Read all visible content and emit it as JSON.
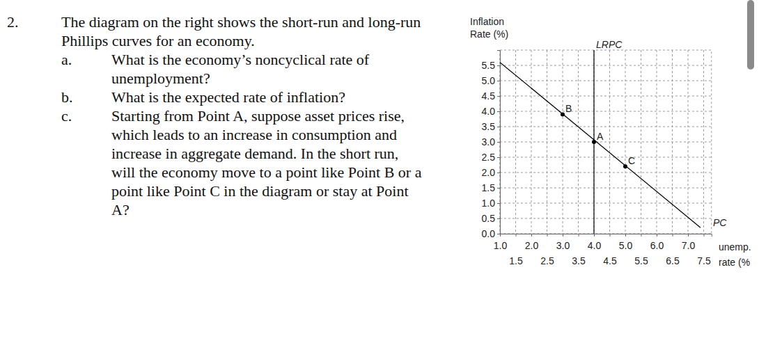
{
  "question": {
    "number": "2.",
    "intro": [
      "The diagram on the right shows the short-run and long-run",
      "Phillips curves for an economy."
    ],
    "parts": [
      {
        "label": "a.",
        "lines": [
          "What is the economy’s noncyclical rate of",
          "unemployment?"
        ]
      },
      {
        "label": "b.",
        "lines": [
          "What is the expected rate of inflation?"
        ]
      },
      {
        "label": "c.",
        "lines": [
          "Starting from Point A, suppose asset prices rise,",
          "which leads to an increase in consumption and",
          "increase in aggregate demand.  In the short run,",
          "will the economy move to a point like Point B or a",
          "point like Point C in the diagram or stay at Point",
          "A?"
        ]
      }
    ]
  },
  "chart_data": {
    "type": "line",
    "y_label": [
      "Inflation",
      "Rate (%)"
    ],
    "x_label": [
      "unemp.",
      "rate (%"
    ],
    "xlim": [
      1.0,
      7.75
    ],
    "ylim": [
      0,
      6.0
    ],
    "xticks": [
      {
        "value": 1.0,
        "label": "1.0"
      },
      {
        "value": 1.5,
        "label": "1.5"
      },
      {
        "value": 2.0,
        "label": "2.0"
      },
      {
        "value": 2.5,
        "label": "2.5"
      },
      {
        "value": 3.0,
        "label": "3.0"
      },
      {
        "value": 3.5,
        "label": "3.5"
      },
      {
        "value": 4.0,
        "label": "4.0"
      },
      {
        "value": 4.5,
        "label": "4.5"
      },
      {
        "value": 5.0,
        "label": "5.0"
      },
      {
        "value": 5.5,
        "label": "5.5"
      },
      {
        "value": 6.0,
        "label": "6.0"
      },
      {
        "value": 6.5,
        "label": "6.5"
      },
      {
        "value": 7.0,
        "label": "7.0"
      },
      {
        "value": 7.5,
        "label": "7.5"
      }
    ],
    "yticks": [
      {
        "value": 0,
        "label": "0.0"
      },
      {
        "value": 0.5,
        "label": "0.5"
      },
      {
        "value": 1.0,
        "label": "1.0"
      },
      {
        "value": 1.5,
        "label": "1.5"
      },
      {
        "value": 2.0,
        "label": "2.0"
      },
      {
        "value": 2.5,
        "label": "2.5"
      },
      {
        "value": 3.0,
        "label": "3.0"
      },
      {
        "value": 3.5,
        "label": "3.5"
      },
      {
        "value": 4.0,
        "label": "4.0"
      },
      {
        "value": 4.5,
        "label": "4.5"
      },
      {
        "value": 5.0,
        "label": "5.0"
      },
      {
        "value": 5.5,
        "label": "5.5"
      }
    ],
    "grid": true,
    "series": [
      {
        "name": "PC",
        "color": "#000000",
        "x": [
          1.0,
          7.4
        ],
        "values": [
          5.6,
          0.2
        ]
      },
      {
        "name": "LRPC",
        "color": "#000000",
        "x": [
          4.0,
          4.0
        ],
        "values": [
          0,
          6.0
        ]
      }
    ],
    "points": [
      {
        "label": "B",
        "x": 3.0,
        "y": 3.9
      },
      {
        "label": "A",
        "x": 4.0,
        "y": 3.0
      },
      {
        "label": "C",
        "x": 5.0,
        "y": 2.2
      }
    ]
  }
}
